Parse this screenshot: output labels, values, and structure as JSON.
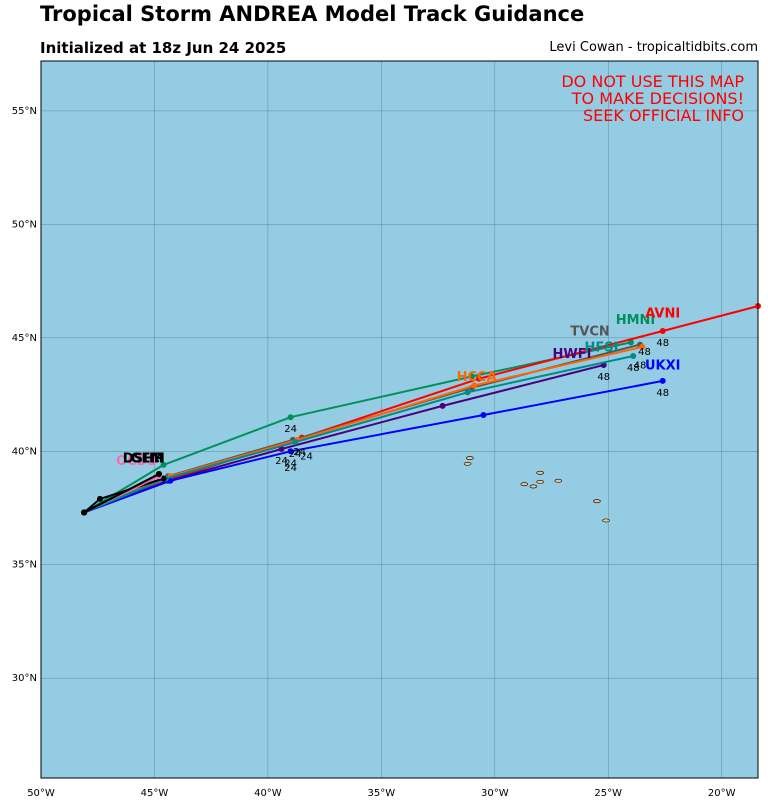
{
  "header": {
    "title": "Tropical Storm ANDREA Model Track Guidance",
    "subtitle": "Initialized at 18z Jun 24 2025",
    "credit": "Levi Cowan - tropicaltidbits.com"
  },
  "warning": [
    "DO NOT USE THIS MAP",
    "TO MAKE DECISIONS!",
    "SEEK OFFICIAL INFO"
  ],
  "colors": {
    "ocean": "#94cde3",
    "land": "#e8c493",
    "grid": "#5d8a97",
    "warning": "#ff0000"
  },
  "chart_data": {
    "type": "map-track",
    "lon_range": [
      -50,
      -18.4
    ],
    "lat_range": [
      25.6,
      57.2
    ],
    "x_ticks": [
      {
        "value": -50,
        "label": "50°W"
      },
      {
        "value": -45,
        "label": "45°W"
      },
      {
        "value": -40,
        "label": "40°W"
      },
      {
        "value": -35,
        "label": "35°W"
      },
      {
        "value": -30,
        "label": "30°W"
      },
      {
        "value": -25,
        "label": "25°W"
      },
      {
        "value": -20,
        "label": "20°W"
      }
    ],
    "y_ticks": [
      {
        "value": 30,
        "label": "30°N"
      },
      {
        "value": 35,
        "label": "35°N"
      },
      {
        "value": 40,
        "label": "40°N"
      },
      {
        "value": 45,
        "label": "45°N"
      },
      {
        "value": 50,
        "label": "50°N"
      },
      {
        "value": 55,
        "label": "55°N"
      }
    ],
    "grid": true,
    "series": [
      {
        "name": "HMNI",
        "color": "#00915a",
        "points": [
          [
            -48.1,
            37.3
          ],
          [
            -44.6,
            39.4
          ],
          [
            -39,
            41.5
          ],
          [
            -31,
            43.3
          ],
          [
            -24,
            44.8
          ]
        ],
        "hour_labels": [
          {
            "lon": -39,
            "lat": 41.5,
            "text": "24"
          }
        ],
        "label_pos": [
          -23.8,
          45.6
        ]
      },
      {
        "name": "AVNI",
        "color": "#ff0000",
        "points": [
          [
            -48.1,
            37.3
          ],
          [
            -44.2,
            38.8
          ],
          [
            -38.5,
            40.6
          ],
          [
            -30.7,
            43.2
          ],
          [
            -22.6,
            45.3
          ],
          [
            -18.4,
            46.4
          ]
        ],
        "hour_labels": [
          {
            "lon": -22.6,
            "lat": 45.3,
            "text": "48"
          }
        ],
        "label_pos": [
          -22.6,
          45.9
        ]
      },
      {
        "name": "TVCN",
        "color": "#555555",
        "points": [
          [
            -48.1,
            37.3
          ],
          [
            -44.4,
            38.9
          ],
          [
            -38.9,
            40.5
          ],
          [
            -31,
            42.8
          ],
          [
            -23.6,
            44.7
          ]
        ],
        "hour_labels": [],
        "label_pos": [
          -25.8,
          45.1
        ]
      },
      {
        "name": "HCCA",
        "color": "#ff6600",
        "points": [
          [
            -48.1,
            37.3
          ],
          [
            -44.3,
            38.9
          ],
          [
            -38.7,
            40.5
          ],
          [
            -30.9,
            42.9
          ],
          [
            -23.5,
            44.6
          ]
        ],
        "hour_labels": [],
        "label_pos": [
          -30.8,
          43.1
        ]
      },
      {
        "name": "HWFI",
        "color": "#4b0082",
        "points": [
          [
            -48.1,
            37.3
          ],
          [
            -44.4,
            38.7
          ],
          [
            -39.4,
            40.1
          ],
          [
            -32.3,
            42
          ],
          [
            -25.2,
            43.8
          ]
        ],
        "hour_labels": [
          {
            "lon": -39.4,
            "lat": 40.1,
            "text": "24"
          },
          {
            "lon": -25.2,
            "lat": 43.8,
            "text": "48"
          }
        ],
        "label_pos": [
          -26.6,
          44.1
        ]
      },
      {
        "name": "UKXI",
        "color": "#0000ff",
        "points": [
          [
            -48.1,
            37.3
          ],
          [
            -44.3,
            38.7
          ],
          [
            -39,
            40
          ],
          [
            -30.5,
            41.6
          ],
          [
            -22.6,
            43.1
          ]
        ],
        "hour_labels": [
          {
            "lon": -39,
            "lat": 40,
            "text": "24"
          },
          {
            "lon": -22.6,
            "lat": 43.1,
            "text": "48"
          }
        ],
        "label_pos": [
          -22.6,
          43.6
        ]
      },
      {
        "name": "HFSI",
        "color": "#008b8b",
        "points": [
          [
            -48.1,
            37.3
          ],
          [
            -44.5,
            38.8
          ],
          [
            -38.8,
            40.4
          ],
          [
            -31.2,
            42.6
          ],
          [
            -23.9,
            44.2
          ]
        ],
        "hour_labels": [
          {
            "lon": -38.8,
            "lat": 40.4,
            "text": "24"
          },
          {
            "lon": -23.9,
            "lat": 44.2,
            "text": "48"
          }
        ],
        "label_pos": [
          -25.3,
          44.4
        ]
      },
      {
        "name": "OFCI",
        "color": "#000000",
        "points": [
          [
            -48.1,
            37.3
          ],
          [
            -47.4,
            37.9
          ],
          [
            -44.6,
            38.8
          ]
        ],
        "hour_labels": [],
        "label_pos": [
          -45.3,
          39.5
        ]
      },
      {
        "name": "OCD5",
        "color": "#ff69b4",
        "points": [
          [
            -48.1,
            37.3
          ],
          [
            -44.8,
            38.9
          ]
        ],
        "hour_labels": [],
        "label_pos": [
          -45.8,
          39.4
        ]
      },
      {
        "name": "DSHP",
        "color": "#000000",
        "points": [
          [
            -48.1,
            37.3
          ],
          [
            -44.8,
            39.0
          ]
        ],
        "hour_labels": [],
        "label_pos": [
          -45.5,
          39.5
        ]
      },
      {
        "name": "LGEM",
        "color": "#000000",
        "points": [
          [
            -48.1,
            37.3
          ],
          [
            -44.8,
            39.0
          ]
        ],
        "hour_labels": [],
        "label_pos": [
          -45.5,
          39.5
        ]
      }
    ],
    "extra_hour_labels": [
      {
        "lon": -38.6,
        "lat": 40.5,
        "text": "24"
      },
      {
        "lon": -38.3,
        "lat": 40.3,
        "text": "24"
      },
      {
        "lon": -39.0,
        "lat": 39.8,
        "text": "24"
      },
      {
        "lon": -23.6,
        "lat": 44.3,
        "text": "48"
      },
      {
        "lon": -23.4,
        "lat": 44.9,
        "text": "48"
      }
    ]
  },
  "islands": [
    {
      "name": "Flores",
      "lon": -31.2,
      "lat": 39.45
    },
    {
      "name": "Corvo",
      "lon": -31.1,
      "lat": 39.7
    },
    {
      "name": "Faial",
      "lon": -28.7,
      "lat": 38.55
    },
    {
      "name": "Pico",
      "lon": -28.3,
      "lat": 38.45
    },
    {
      "name": "SaoJorge",
      "lon": -28.0,
      "lat": 38.65
    },
    {
      "name": "Graciosa",
      "lon": -28.0,
      "lat": 39.05
    },
    {
      "name": "Terceira",
      "lon": -27.2,
      "lat": 38.7
    },
    {
      "name": "SaoMiguel",
      "lon": -25.5,
      "lat": 37.8
    },
    {
      "name": "SantaMaria",
      "lon": -25.1,
      "lat": 36.95
    }
  ]
}
